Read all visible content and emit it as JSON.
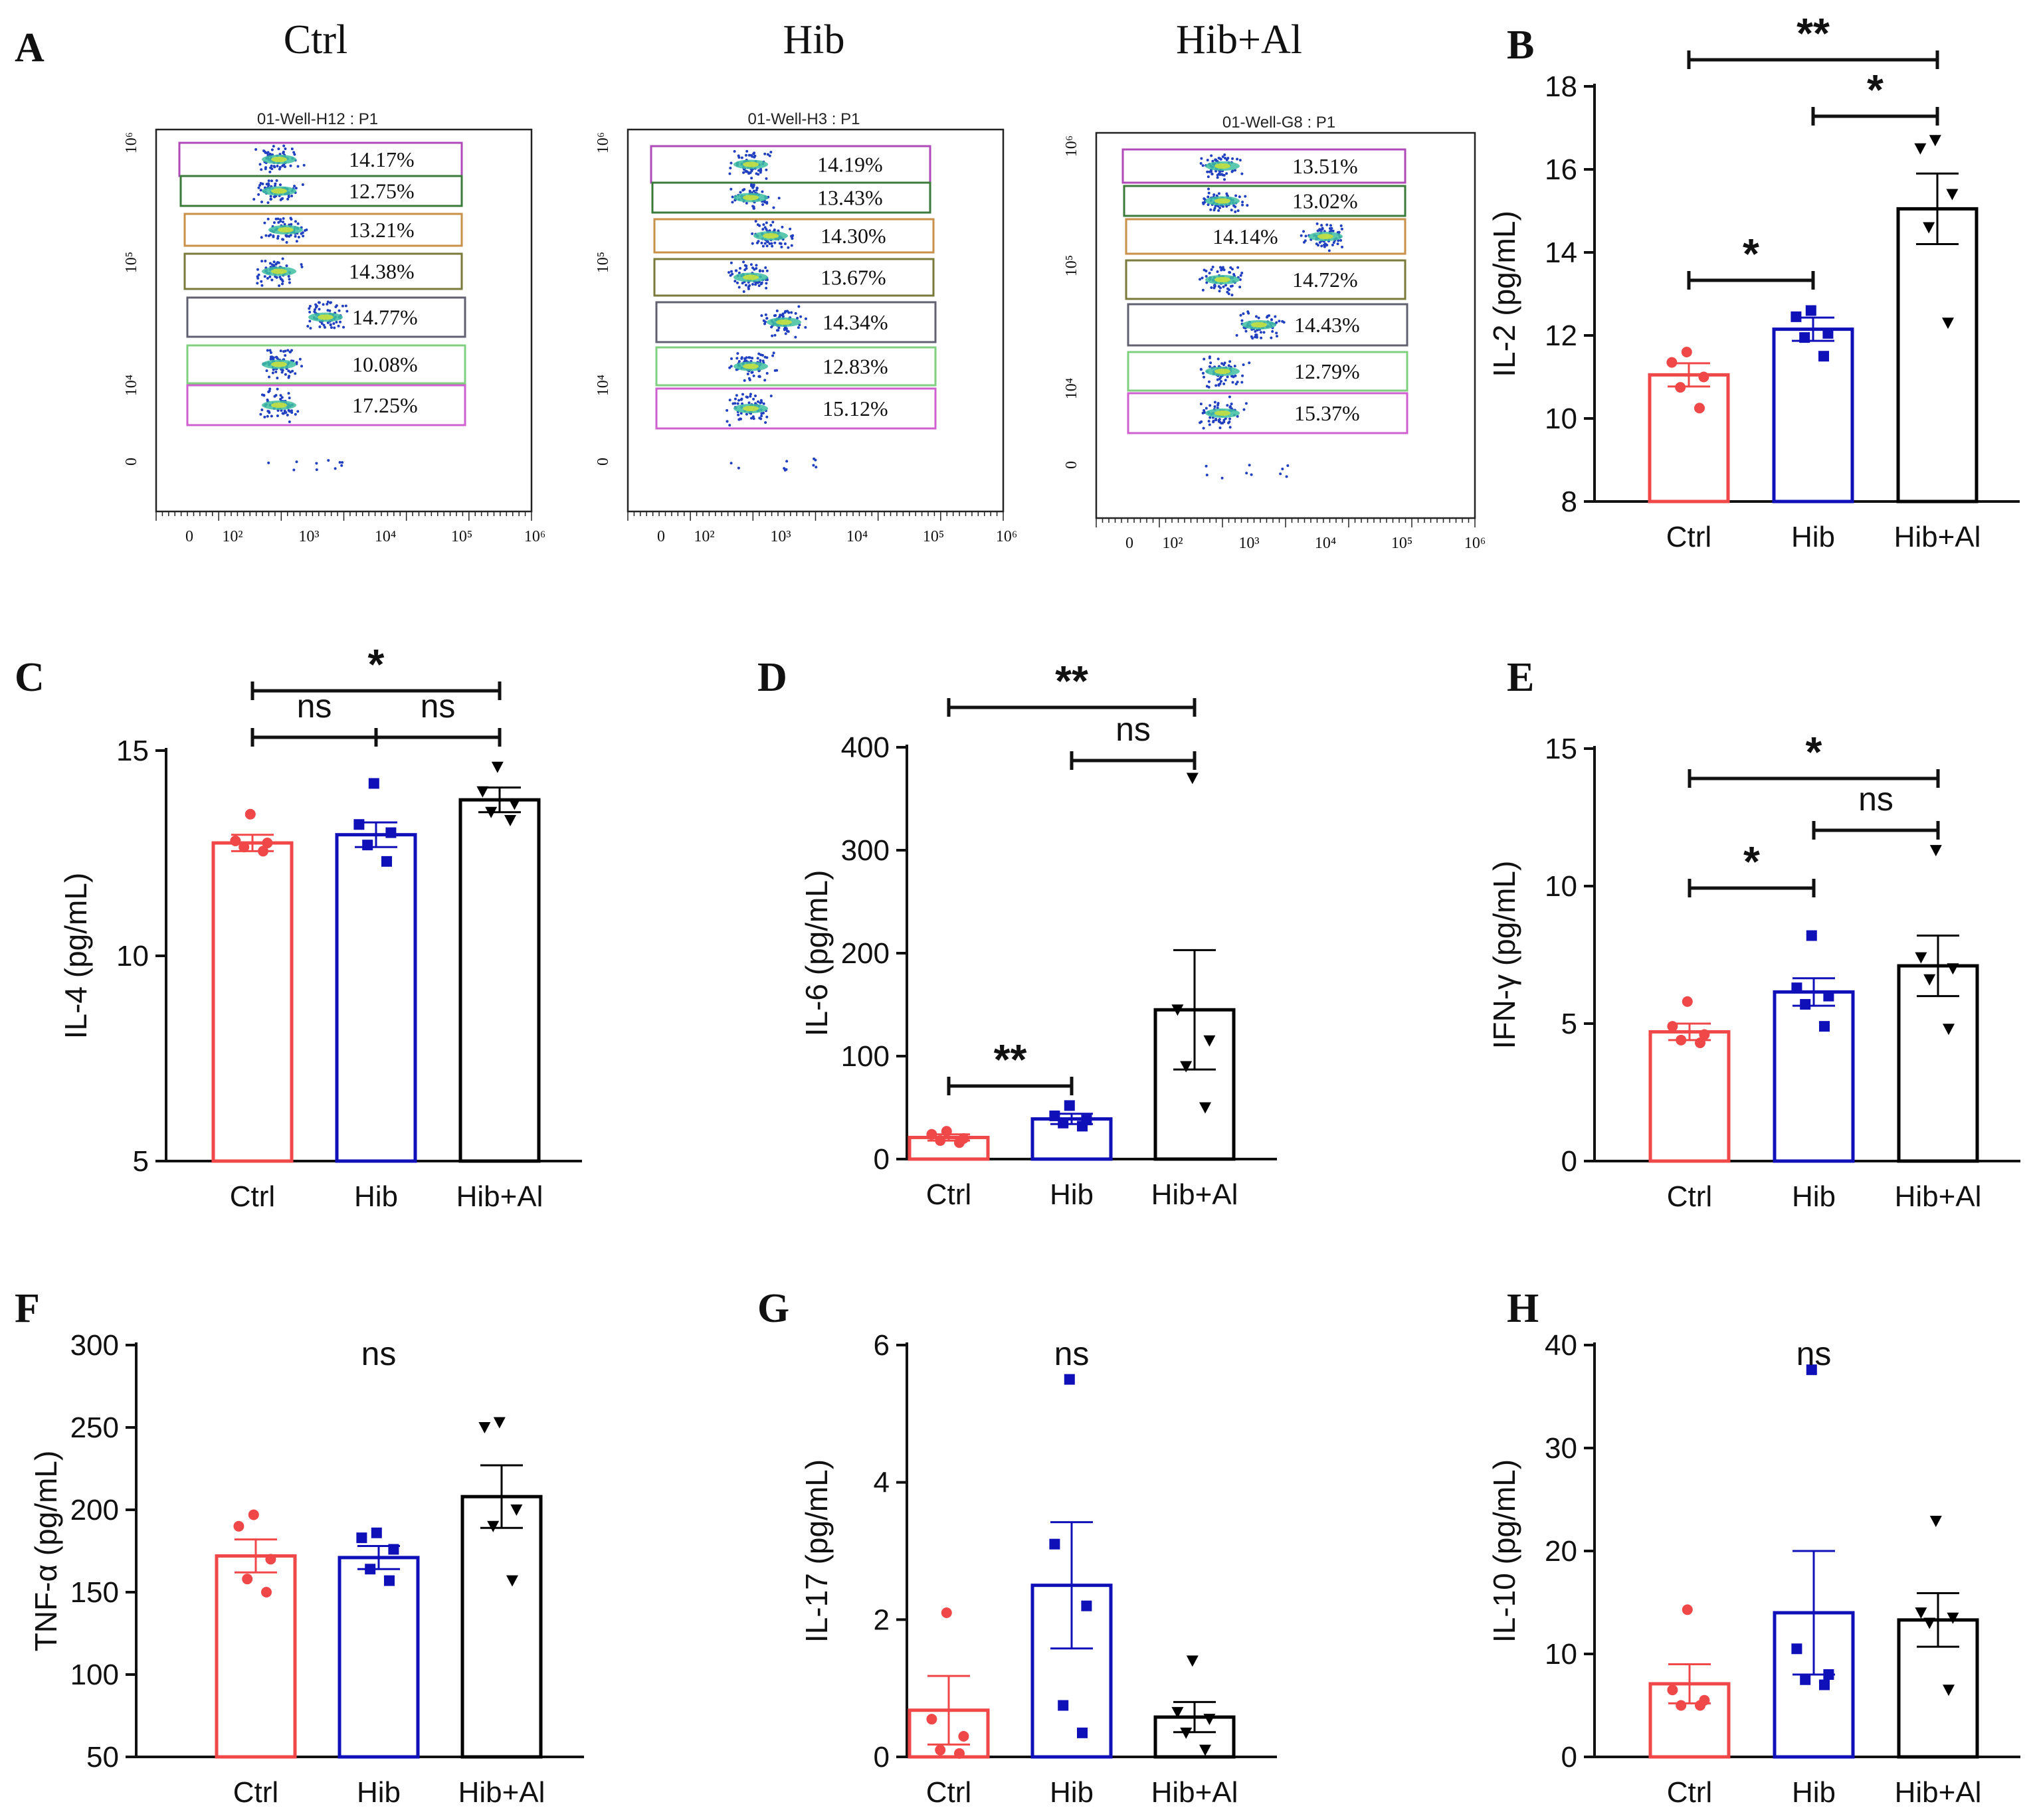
{
  "panel_labels": {
    "A": "A",
    "B": "B",
    "C": "C",
    "D": "D",
    "E": "E",
    "F": "F",
    "G": "G",
    "H": "H"
  },
  "colors": {
    "ctrl": "#f04848",
    "hib": "#1010b8",
    "hibal": "#000000"
  },
  "flow": {
    "groups": [
      "Ctrl",
      "Hib",
      "Hib+Al"
    ],
    "plots": [
      {
        "title": "01-Well-H12 : P1",
        "gates": [
          "14.17%",
          "12.75%",
          "13.21%",
          "14.38%",
          "14.77%",
          "10.08%",
          "17.25%"
        ]
      },
      {
        "title": "01-Well-H3 : P1",
        "gates": [
          "14.19%",
          "13.43%",
          "14.30%",
          "13.67%",
          "14.34%",
          "12.83%",
          "15.12%"
        ]
      },
      {
        "title": "01-Well-G8 : P1",
        "gates": [
          "13.51%",
          "13.02%",
          "14.14%",
          "14.72%",
          "14.43%",
          "12.79%",
          "15.37%"
        ]
      }
    ],
    "y_ticks": [
      "10⁶",
      "10⁵",
      "10⁴",
      "0"
    ],
    "x_ticks": [
      "0",
      "10²",
      "10³",
      "10⁴",
      "10⁵",
      "10⁶"
    ]
  },
  "chart_data": [
    {
      "panel": "B",
      "type": "bar",
      "title": "",
      "xlabel": "",
      "ylabel": "IL-2 (pg/mL)",
      "categories": [
        "Ctrl",
        "Hib",
        "Hib+Al"
      ],
      "values": [
        11.05,
        12.15,
        15.05
      ],
      "errors": [
        0.28,
        0.28,
        0.85
      ],
      "points": [
        [
          11.6,
          11.35,
          11.0,
          10.75,
          10.25
        ],
        [
          12.6,
          12.45,
          12.05,
          11.95,
          11.5
        ],
        [
          16.7,
          16.5,
          15.4,
          14.6,
          12.3
        ]
      ],
      "ylim": [
        8,
        18
      ],
      "yticks": [
        8,
        10,
        12,
        14,
        16,
        18
      ],
      "comparisons": [
        {
          "from": 0,
          "to": 2,
          "label": "**"
        },
        {
          "from": 1,
          "to": 2,
          "label": "*"
        },
        {
          "from": 0,
          "to": 1,
          "label": "*"
        }
      ]
    },
    {
      "panel": "C",
      "type": "bar",
      "title": "",
      "xlabel": "",
      "ylabel": "IL-4 (pg/mL)",
      "categories": [
        "Ctrl",
        "Hib",
        "Hib+Al"
      ],
      "values": [
        12.75,
        12.95,
        13.8
      ],
      "errors": [
        0.2,
        0.3,
        0.3
      ],
      "points": [
        [
          13.45,
          12.8,
          12.75,
          12.65,
          12.55
        ],
        [
          14.2,
          13.2,
          13.0,
          12.7,
          12.3
        ],
        [
          14.6,
          14.0,
          13.7,
          13.5,
          13.3
        ]
      ],
      "ylim": [
        5,
        15
      ],
      "yticks": [
        5,
        10,
        15
      ],
      "comparisons": [
        {
          "from": 0,
          "to": 2,
          "label": "*"
        },
        {
          "from": 0,
          "to": 1,
          "label": "ns"
        },
        {
          "from": 1,
          "to": 2,
          "label": "ns"
        }
      ]
    },
    {
      "panel": "D",
      "type": "bar",
      "title": "",
      "xlabel": "",
      "ylabel": "IL-6 (pg/mL)",
      "categories": [
        "Ctrl",
        "Hib",
        "Hib+Al"
      ],
      "values": [
        21,
        39,
        145
      ],
      "errors": [
        3,
        5,
        58
      ],
      "points": [
        [
          27,
          24,
          20,
          18,
          16
        ],
        [
          52,
          42,
          38,
          35,
          32
        ],
        [
          370,
          145,
          115,
          90,
          50
        ]
      ],
      "ylim": [
        0,
        400
      ],
      "yticks": [
        0,
        100,
        200,
        300,
        400
      ],
      "comparisons": [
        {
          "from": 0,
          "to": 2,
          "label": "**"
        },
        {
          "from": 1,
          "to": 2,
          "label": "ns"
        },
        {
          "from": 0,
          "to": 1,
          "label": "**"
        }
      ]
    },
    {
      "panel": "E",
      "type": "bar",
      "title": "",
      "xlabel": "",
      "ylabel": "IFN-γ (pg/mL)",
      "categories": [
        "Ctrl",
        "Hib",
        "Hib+Al"
      ],
      "values": [
        4.7,
        6.15,
        7.1
      ],
      "errors": [
        0.3,
        0.5,
        1.1
      ],
      "points": [
        [
          5.8,
          4.9,
          4.6,
          4.4,
          4.3
        ],
        [
          8.2,
          6.3,
          6.0,
          5.7,
          4.9
        ],
        [
          11.3,
          7.4,
          7.0,
          6.6,
          4.8
        ]
      ],
      "ylim": [
        0,
        15
      ],
      "yticks": [
        0,
        5,
        10,
        15
      ],
      "comparisons": [
        {
          "from": 0,
          "to": 2,
          "label": "*"
        },
        {
          "from": 1,
          "to": 2,
          "label": "ns"
        },
        {
          "from": 0,
          "to": 1,
          "label": "*"
        }
      ]
    },
    {
      "panel": "F",
      "type": "bar",
      "title": "ns",
      "xlabel": "",
      "ylabel": "TNF-α (pg/mL)",
      "categories": [
        "Ctrl",
        "Hib",
        "Hib+Al"
      ],
      "values": [
        172,
        171,
        208
      ],
      "errors": [
        10,
        7,
        19
      ],
      "points": [
        [
          197,
          190,
          170,
          158,
          150
        ],
        [
          186,
          183,
          176,
          164,
          157
        ],
        [
          253,
          250,
          200,
          190,
          157
        ]
      ],
      "ylim": [
        50,
        300
      ],
      "yticks": [
        50,
        100,
        150,
        200,
        250,
        300
      ],
      "comparisons": []
    },
    {
      "panel": "G",
      "type": "bar",
      "title": "ns",
      "xlabel": "",
      "ylabel": "IL-17 (pg/mL)",
      "categories": [
        "Ctrl",
        "Hib",
        "Hib+Al"
      ],
      "values": [
        0.68,
        2.5,
        0.58
      ],
      "errors": [
        0.5,
        0.92,
        0.22
      ],
      "points": [
        [
          2.1,
          0.55,
          0.3,
          0.1,
          0.05
        ],
        [
          5.5,
          3.1,
          2.2,
          0.75,
          0.35
        ],
        [
          1.4,
          0.65,
          0.55,
          0.35,
          0.1
        ]
      ],
      "ylim": [
        0,
        6
      ],
      "yticks": [
        0,
        2,
        4,
        6
      ],
      "comparisons": []
    },
    {
      "panel": "H",
      "type": "bar",
      "title": "ns",
      "xlabel": "",
      "ylabel": "IL-10 (pg/mL)",
      "categories": [
        "Ctrl",
        "Hib",
        "Hib+Al"
      ],
      "values": [
        7.1,
        14.0,
        13.3
      ],
      "errors": [
        1.9,
        6.0,
        2.6
      ],
      "points": [
        [
          14.3,
          6.5,
          5.5,
          5.0,
          5.0
        ],
        [
          37.6,
          10.5,
          8.0,
          7.5,
          7.0
        ],
        [
          22.9,
          14.0,
          13.5,
          13.0,
          6.5
        ]
      ],
      "ylim": [
        0,
        40
      ],
      "yticks": [
        0,
        10,
        20,
        30,
        40
      ],
      "comparisons": []
    }
  ]
}
